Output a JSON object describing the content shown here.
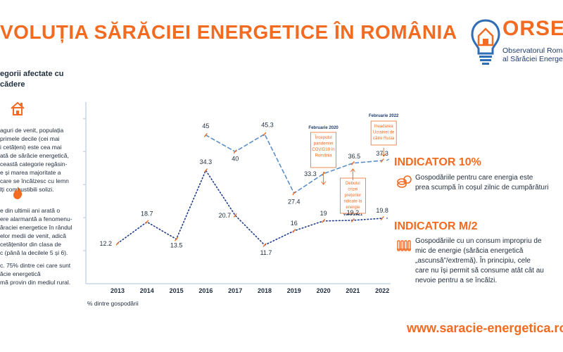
{
  "title": "VOLUȚIA SĂRĂCIEI ENERGETICE ÎN ROMÂNIA",
  "logo": {
    "name": "ORSE",
    "subtitle_line1": "Observatorul Român",
    "subtitle_line2": "al Sărăciei Energetice"
  },
  "left_panel": {
    "heading_line1": "egorii afectate cu",
    "heading_line2": "cădere",
    "block1": [
      "aguri de venit, populația",
      "primele decile (cei mai",
      "i cetățeni) este cea mai",
      "ată de sărăcie energetică,",
      "ceastă categorie regăsin-",
      "e și marea majoritate a",
      " care se încălzesc cu lemn",
      "lți combustibili solizi."
    ],
    "block2": [
      "e din ultimii ani arată o",
      "ere alarmantă a fenomenu-",
      "ăraciei energetice în rândul",
      "elor medii de venit, adică",
      "cetățenilor din clasa de",
      "c (până la decilele 5 și 6)."
    ],
    "block3": [
      "c. 75% dintre cei care sunt",
      "ăcie energetică",
      "mă provin din mediul rural."
    ]
  },
  "chart_data": {
    "type": "line",
    "x": [
      "2013",
      "2014",
      "2015",
      "2016",
      "2017",
      "2018",
      "2019",
      "2020",
      "2021",
      "2022"
    ],
    "series": [
      {
        "name": "INDICATOR 10%",
        "values": [
          null,
          null,
          null,
          45,
          40,
          45.3,
          27.4,
          33.3,
          36.5,
          37.3
        ],
        "style": "dashed",
        "color": "#5b8fc7"
      },
      {
        "name": "INDICATOR M/2",
        "values": [
          12.2,
          18.7,
          13.5,
          34.3,
          20.7,
          11.7,
          16,
          19,
          19.2,
          19.8
        ],
        "style": "dotted",
        "color": "#1f3c8f"
      }
    ],
    "ylim": [
      0,
      55
    ],
    "xlabel": "% dintre gospodării",
    "ylabel": "",
    "annotations": [
      {
        "year": "2020",
        "date": "Februarie 2020",
        "text": [
          "Începutul",
          "pandemiei",
          "COVID19 în",
          "România"
        ]
      },
      {
        "year": "2021",
        "date": "Vara 2021",
        "text": [
          "Debutul",
          "crizei",
          "prețurilor",
          "ridicate la",
          "energie"
        ]
      },
      {
        "year": "2022",
        "date": "Februarie 2022",
        "text": [
          "Invadarea",
          "Ucrainei de",
          "către Rusia"
        ]
      }
    ]
  },
  "indicators": {
    "ind1": {
      "title": "INDICATOR 10%",
      "text_line1": "Gospodăriile pentru care energia este",
      "text_line2": "prea scumpă în coșul zilnic de cumpărături"
    },
    "ind2": {
      "title": "INDICATOR M/2",
      "lines": [
        "Gospodăriile cu un consum impropriu de",
        "mic de energie (sărăcia energetică",
        "„ascunsă”/extremă). În principiu, cele",
        "care nu își permit să consume atât cât au",
        "nevoie pentru a se încălzi."
      ]
    }
  },
  "footer": "www.saracie-energetica.ro",
  "colors": {
    "accent": "#f26b21",
    "line10": "#5b8fc7",
    "lineM2": "#1f3c8f",
    "axis": "#c9d6e6"
  }
}
